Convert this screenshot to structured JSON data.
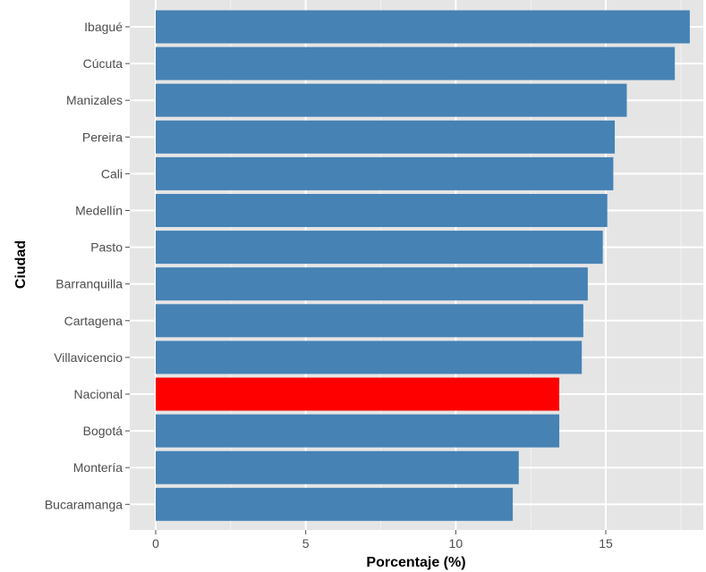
{
  "chart_data": {
    "type": "bar",
    "orientation": "horizontal",
    "title": "",
    "xlabel": "Porcentaje (%)",
    "ylabel": "Ciudad",
    "xlim": [
      0,
      18
    ],
    "x_ticks": [
      0,
      5,
      10,
      15
    ],
    "grid": true,
    "bar_color": "#4682B4",
    "highlight_color": "#FF0000",
    "panel_background": "#E5E5E5",
    "categories": [
      "Ibagué",
      "Cúcuta",
      "Manizales",
      "Pereira",
      "Cali",
      "Medellín",
      "Pasto",
      "Barranquilla",
      "Cartagena",
      "Villavicencio",
      "Nacional",
      "Bogotá",
      "Montería",
      "Bucaramanga"
    ],
    "values": [
      17.8,
      17.3,
      15.7,
      15.3,
      15.25,
      15.05,
      14.9,
      14.4,
      14.25,
      14.2,
      13.45,
      13.45,
      12.1,
      11.9
    ],
    "highlight": [
      "Nacional"
    ]
  }
}
